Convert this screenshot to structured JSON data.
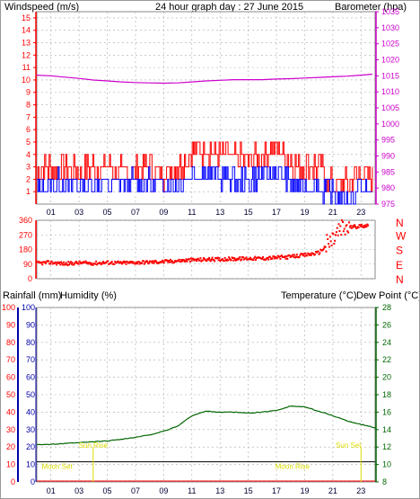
{
  "header": {
    "windspeed_label": "Windspeed (m/s)",
    "title": "24 hour graph day : 27 June 2015",
    "barometer_label": "Barometer (hpa)",
    "rainfall_label": "Rainfall (mm)",
    "humidity_label": "Humidity (%)",
    "temperature_label": "Temperature (°C)",
    "dewpoint_label": "Dew Point (°C)"
  },
  "colors": {
    "wind": "#ff0000",
    "gust": "#ff0000",
    "wind_avg": "#0000ff",
    "barometer": "#cc00cc",
    "direction": "#ff0000",
    "temperature": "#006600",
    "humidity": "#0000aa",
    "rain": "#ff0000",
    "astro": "#dddd00",
    "grid": "#aaaaaa"
  },
  "x_ticks": [
    "01",
    "03",
    "05",
    "07",
    "09",
    "11",
    "13",
    "15",
    "17",
    "19",
    "21",
    "23"
  ],
  "chart_data": [
    {
      "type": "line",
      "title": "24 hour graph day : 27 June 2015",
      "y_left_label": "Windspeed (m/s)",
      "y_right_label": "Barometer (hpa)",
      "y_left_ticks": [
        "15",
        "14",
        "13",
        "12",
        "11",
        "10",
        "9",
        "8",
        "7",
        "6",
        "5",
        "4",
        "3",
        "2",
        "1"
      ],
      "y_right_ticks": [
        "1035",
        "1030",
        "1025",
        "1020",
        "1015",
        "1010",
        "1005",
        "1000",
        "995",
        "990",
        "985",
        "980",
        "975"
      ],
      "ylim_left": [
        0,
        15.5
      ],
      "ylim_right": [
        975,
        1035
      ],
      "x_hours": [
        0,
        1,
        2,
        3,
        4,
        5,
        6,
        7,
        8,
        9,
        10,
        11,
        12,
        13,
        14,
        15,
        16,
        17,
        18,
        19,
        20,
        21,
        22,
        23,
        23.8
      ],
      "series": [
        {
          "name": "Barometer (hpa)",
          "values": [
            1015.2,
            1015,
            1014.6,
            1014.2,
            1013.7,
            1013.4,
            1013.1,
            1012.9,
            1012.8,
            1012.7,
            1012.8,
            1013.1,
            1013.4,
            1013.6,
            1013.8,
            1013.8,
            1013.8,
            1014,
            1014.1,
            1014.3,
            1014.5,
            1014.7,
            1014.9,
            1015.2,
            1015.5
          ]
        },
        {
          "values": [
            2.5,
            3,
            3,
            2.5,
            3,
            3,
            2.5,
            3,
            3,
            2.5,
            3,
            4,
            4.5,
            4,
            3.5,
            3.5,
            4,
            4.5,
            3.5,
            3,
            3,
            1.5,
            1.5,
            2.5,
            2
          ]
        },
        {
          "values": [
            1.2,
            1.6,
            1.7,
            1.5,
            1.7,
            1.7,
            1.6,
            1.8,
            1.7,
            1.6,
            1.7,
            2.3,
            2.6,
            2.1,
            1.9,
            2,
            2.2,
            2.4,
            1.8,
            1.5,
            1.4,
            0.6,
            0.6,
            1.3,
            1.1
          ]
        }
      ]
    },
    {
      "type": "scatter",
      "y_ticks": [
        "360",
        "270",
        "180",
        "90",
        "0"
      ],
      "y_right_labels": [
        "N",
        "W",
        "S",
        "E",
        "N"
      ],
      "ylim": [
        0,
        360
      ],
      "x_hours": [
        0,
        1,
        2,
        3,
        4,
        5,
        6,
        7,
        8,
        9,
        10,
        11,
        12,
        13,
        14,
        15,
        16,
        17,
        18,
        19,
        20,
        21,
        21.5,
        22,
        22.5,
        23,
        23.5
      ],
      "values": [
        95,
        100,
        92,
        98,
        95,
        100,
        97,
        100,
        102,
        105,
        110,
        115,
        118,
        120,
        122,
        125,
        125,
        130,
        135,
        145,
        160,
        240,
        300,
        315,
        320,
        325,
        330
      ]
    },
    {
      "type": "line",
      "y_left_ticks": [
        "100",
        "90",
        "80",
        "70",
        "60",
        "50",
        "40",
        "30",
        "20",
        "10",
        "0"
      ],
      "y_right_ticks": [
        "28",
        "26",
        "24",
        "22",
        "20",
        "18",
        "16",
        "14",
        "12",
        "10",
        "8"
      ],
      "ylim_left": [
        0,
        100
      ],
      "ylim_right": [
        8,
        28
      ],
      "x_hours": [
        0,
        1,
        2,
        3,
        4,
        5,
        6,
        7,
        8,
        9,
        10,
        11,
        12,
        13,
        14,
        15,
        16,
        17,
        18,
        19,
        20,
        21,
        22,
        23,
        24
      ],
      "series": [
        {
          "name": "Temperature (°C)",
          "values": [
            12.3,
            12.3,
            12.4,
            12.5,
            12.6,
            12.7,
            12.9,
            13.1,
            13.4,
            13.8,
            14.4,
            15.6,
            16.1,
            16,
            16,
            15.9,
            16,
            16.2,
            16.7,
            16.6,
            16.1,
            15.6,
            15,
            14.6,
            14.2
          ]
        }
      ],
      "annotations": [
        {
          "label": "Moon Set",
          "hour": 0.8
        },
        {
          "label": "Sun Rise",
          "hour": 4.0
        },
        {
          "label": "Moon Rise",
          "hour": 17.5
        },
        {
          "label": "Sun Set",
          "hour": 23.0
        }
      ]
    }
  ]
}
